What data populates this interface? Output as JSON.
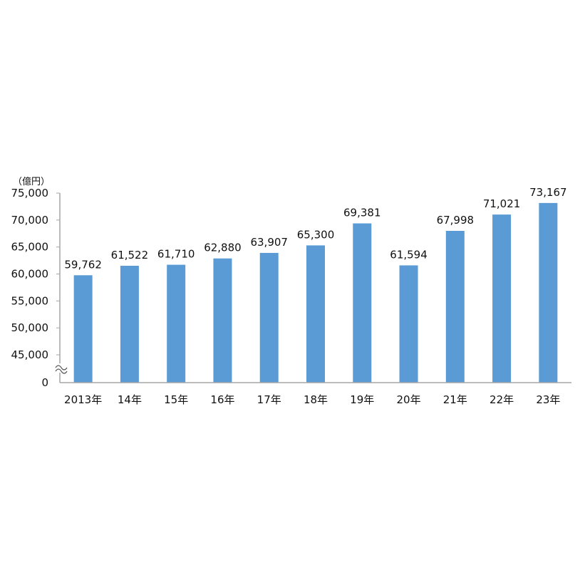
{
  "chart_data": {
    "type": "bar",
    "unit_label": "（億円）",
    "categories": [
      "2013年",
      "14年",
      "15年",
      "16年",
      "17年",
      "18年",
      "19年",
      "20年",
      "21年",
      "22年",
      "23年"
    ],
    "values": [
      59762,
      61522,
      61710,
      62880,
      63907,
      65300,
      69381,
      61594,
      67998,
      71021,
      73167
    ],
    "data_labels": [
      "59,762",
      "61,522",
      "61,710",
      "62,880",
      "63,907",
      "65,300",
      "69,381",
      "61,594",
      "67,998",
      "71,021",
      "73,167"
    ],
    "y_ticks": [
      45000,
      50000,
      55000,
      60000,
      65000,
      70000,
      75000
    ],
    "y_tick_labels": [
      "45,000",
      "50,000",
      "55,000",
      "60,000",
      "65,000",
      "70,000",
      "75,000"
    ],
    "y_zero_label": "0",
    "y_axis_break": true,
    "ylim": [
      40000,
      75000
    ],
    "grid": false,
    "legend": "none",
    "bar_color": "#5b9bd5",
    "axis_color": "#a6a6a6"
  }
}
